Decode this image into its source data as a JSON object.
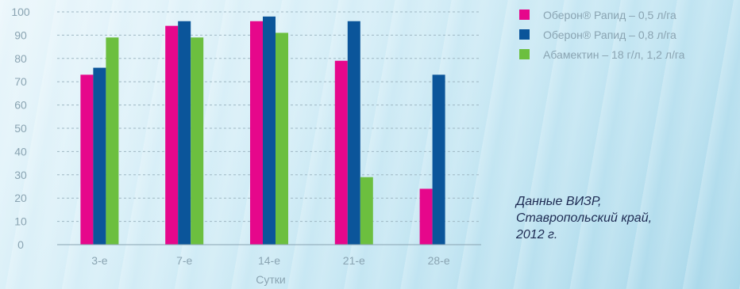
{
  "chart_data": {
    "type": "bar",
    "categories": [
      "3-е",
      "7-е",
      "14-е",
      "21-е",
      "28-е"
    ],
    "series": [
      {
        "name": "Оберон® Рапид – 0,5 л/га",
        "color": "#e6078b",
        "values": [
          73,
          94,
          96,
          79,
          24
        ]
      },
      {
        "name": "Оберон® Рапид – 0,8 л/га",
        "color": "#0b559a",
        "values": [
          76,
          96,
          98,
          96,
          73
        ]
      },
      {
        "name": "Абамектин – 18 г/л, 1,2 л/га",
        "color": "#6cbf3f",
        "values": [
          89,
          89,
          91,
          29,
          null
        ]
      }
    ],
    "xlabel": "Сутки",
    "ylabel": "",
    "ylim": [
      0,
      100
    ],
    "yticks": [
      "0",
      "10",
      "20",
      "30",
      "40",
      "50",
      "60",
      "70",
      "80",
      "90",
      "100"
    ],
    "grid": true,
    "grid_style": "dashed",
    "legend_position": "top-right"
  },
  "legend": {
    "items": [
      {
        "label": "Оберон® Рапид – 0,5 л/га",
        "color": "#e6078b"
      },
      {
        "label": "Оберон® Рапид – 0,8 л/га",
        "color": "#0b559a"
      },
      {
        "label": "Абамектин – 18 г/л, 1,2 л/га",
        "color": "#6cbf3f"
      }
    ]
  },
  "note": {
    "line1": "Данные ВИЗР,",
    "line2": "Ставропольский край,",
    "line3": "2012 г."
  }
}
